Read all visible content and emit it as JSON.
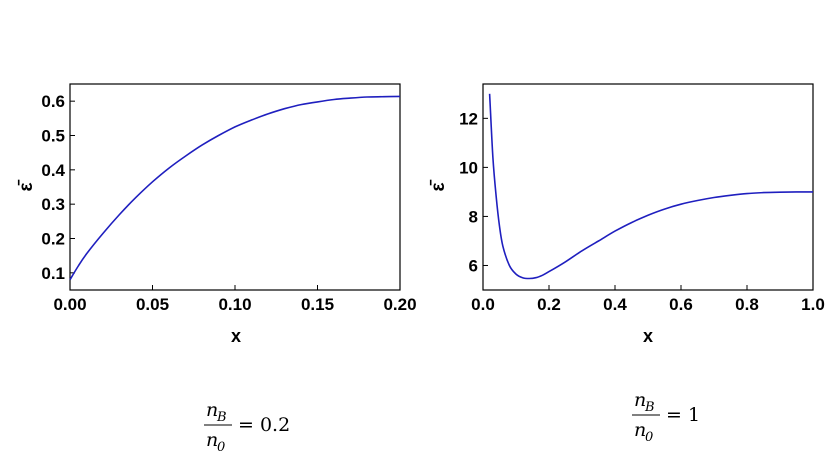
{
  "chart_data": [
    {
      "type": "line",
      "xlabel": "x",
      "ylabel": "ε̄",
      "xlim": [
        0,
        0.2
      ],
      "ylim": [
        0.05,
        0.65
      ],
      "xticks": [
        "0.00",
        "0.05",
        "0.10",
        "0.15",
        "0.20"
      ],
      "yticks": [
        "0.1",
        "0.2",
        "0.3",
        "0.4",
        "0.5",
        "0.6"
      ],
      "series": [
        {
          "color": "#1f1fbf",
          "x": [
            0.0,
            0.005,
            0.01,
            0.02,
            0.03,
            0.04,
            0.05,
            0.06,
            0.07,
            0.08,
            0.09,
            0.1,
            0.11,
            0.12,
            0.13,
            0.14,
            0.15,
            0.16,
            0.17,
            0.18,
            0.19,
            0.2
          ],
          "y": [
            0.08,
            0.12,
            0.155,
            0.215,
            0.27,
            0.32,
            0.365,
            0.405,
            0.44,
            0.472,
            0.5,
            0.525,
            0.545,
            0.563,
            0.578,
            0.59,
            0.598,
            0.605,
            0.609,
            0.612,
            0.613,
            0.614
          ]
        }
      ],
      "caption": {
        "numer": "n",
        "numer_sub": "B",
        "denom": "n",
        "denom_sub": "0",
        "rest": "= 0.2"
      }
    },
    {
      "type": "line",
      "xlabel": "x",
      "ylabel": "ε̄",
      "xlim": [
        0,
        1.0
      ],
      "ylim": [
        5,
        13.4
      ],
      "xticks": [
        "0.0",
        "0.2",
        "0.4",
        "0.6",
        "0.8",
        "1.0"
      ],
      "yticks": [
        "6",
        "8",
        "10",
        "12"
      ],
      "series": [
        {
          "color": "#1f1fbf",
          "x": [
            0.02,
            0.03,
            0.04,
            0.05,
            0.06,
            0.08,
            0.1,
            0.12,
            0.14,
            0.16,
            0.18,
            0.2,
            0.25,
            0.3,
            0.35,
            0.4,
            0.45,
            0.5,
            0.55,
            0.6,
            0.65,
            0.7,
            0.75,
            0.8,
            0.85,
            0.9,
            0.95,
            1.0
          ],
          "y": [
            13.0,
            10.4,
            8.8,
            7.6,
            6.8,
            6.0,
            5.65,
            5.5,
            5.47,
            5.5,
            5.6,
            5.75,
            6.15,
            6.6,
            7.0,
            7.4,
            7.75,
            8.05,
            8.3,
            8.5,
            8.65,
            8.77,
            8.86,
            8.93,
            8.97,
            8.99,
            9.0,
            9.0
          ]
        }
      ],
      "caption": {
        "numer": "n",
        "numer_sub": "B",
        "denom": "n",
        "denom_sub": "0",
        "rest": "= 1"
      }
    }
  ]
}
